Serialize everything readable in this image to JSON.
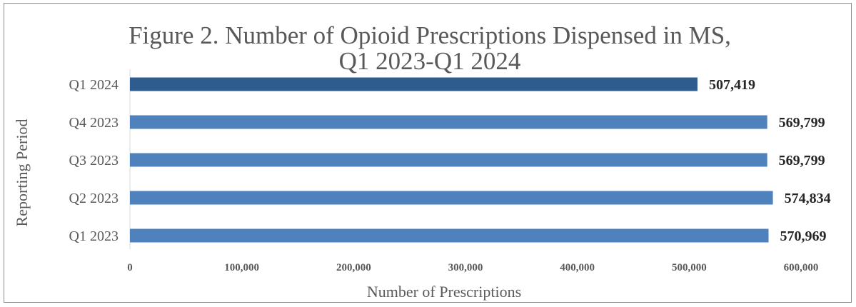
{
  "chart_data": {
    "type": "bar",
    "orientation": "horizontal",
    "title_line1": "Figure 2. Number of Opioid Prescriptions Dispensed in MS,",
    "title_line2": "Q1 2023-Q1 2024",
    "xlabel": "Number of Prescriptions",
    "ylabel": "Reporting Period",
    "categories": [
      "Q1 2024",
      "Q4 2023",
      "Q3 2023",
      "Q2 2023",
      "Q1 2023"
    ],
    "values": [
      507419,
      569799,
      569799,
      574834,
      570969
    ],
    "value_labels": [
      "507,419",
      "569,799",
      "569,799",
      "574,834",
      "570,969"
    ],
    "xticks": [
      0,
      100000,
      200000,
      300000,
      400000,
      500000,
      600000
    ],
    "xtick_labels": [
      "0",
      "100,000",
      "200,000",
      "300,000",
      "400,000",
      "500,000",
      "600,000"
    ],
    "xlim": [
      0,
      600000
    ],
    "grid": false,
    "colors": [
      "#2f5c8f",
      "#4f81bd",
      "#4f81bd",
      "#4f81bd",
      "#4f81bd"
    ]
  }
}
